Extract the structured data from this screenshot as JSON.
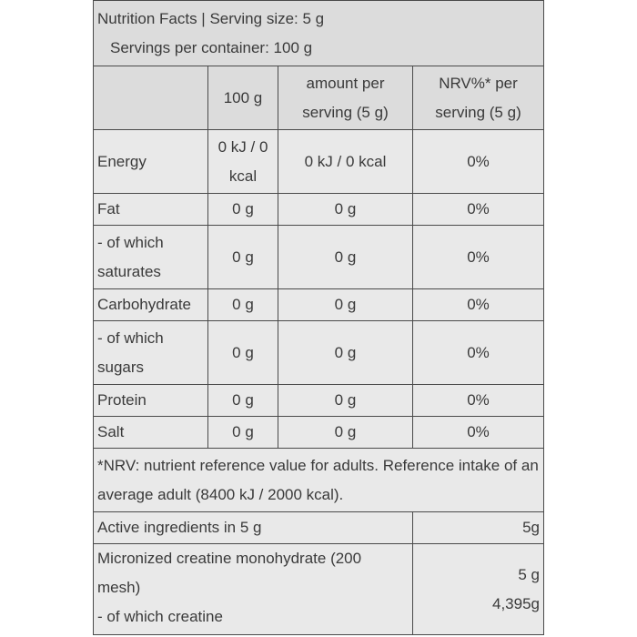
{
  "header": {
    "line1": "Nutrition Facts | Serving size: 5 g",
    "line2": "Servings per container: 100 g"
  },
  "table": {
    "columns": [
      "100 g",
      "amount per serving (5 g)",
      "NRV%* per serving (5 g)"
    ],
    "rows": [
      [
        "Energy",
        "0 kJ / 0 kcal",
        "0 kJ / 0 kcal",
        "0%"
      ],
      [
        "Fat",
        "0 g",
        "0 g",
        "0%"
      ],
      [
        "- of which saturates",
        "0 g",
        "0 g",
        "0%"
      ],
      [
        "Carbohydrate",
        "0 g",
        "0 g",
        "0%"
      ],
      [
        "- of which sugars",
        "0 g",
        "0 g",
        "0%"
      ],
      [
        "Protein",
        "0 g",
        "0 g",
        "0%"
      ],
      [
        "Salt",
        "0 g",
        "0 g",
        "0%"
      ]
    ]
  },
  "footnote": "*NRV: nutrient reference value for adults. Reference intake of an average adult (8400 kJ / 2000 kcal).",
  "active": {
    "label": "Active ingredients in 5 g",
    "amount": "5g"
  },
  "ingredient": {
    "name": "Micronized creatine monohydrate (200 mesh)",
    "sub_name": "- of which creatine",
    "amount": "5 g",
    "sub_amount": "4,395g"
  }
}
